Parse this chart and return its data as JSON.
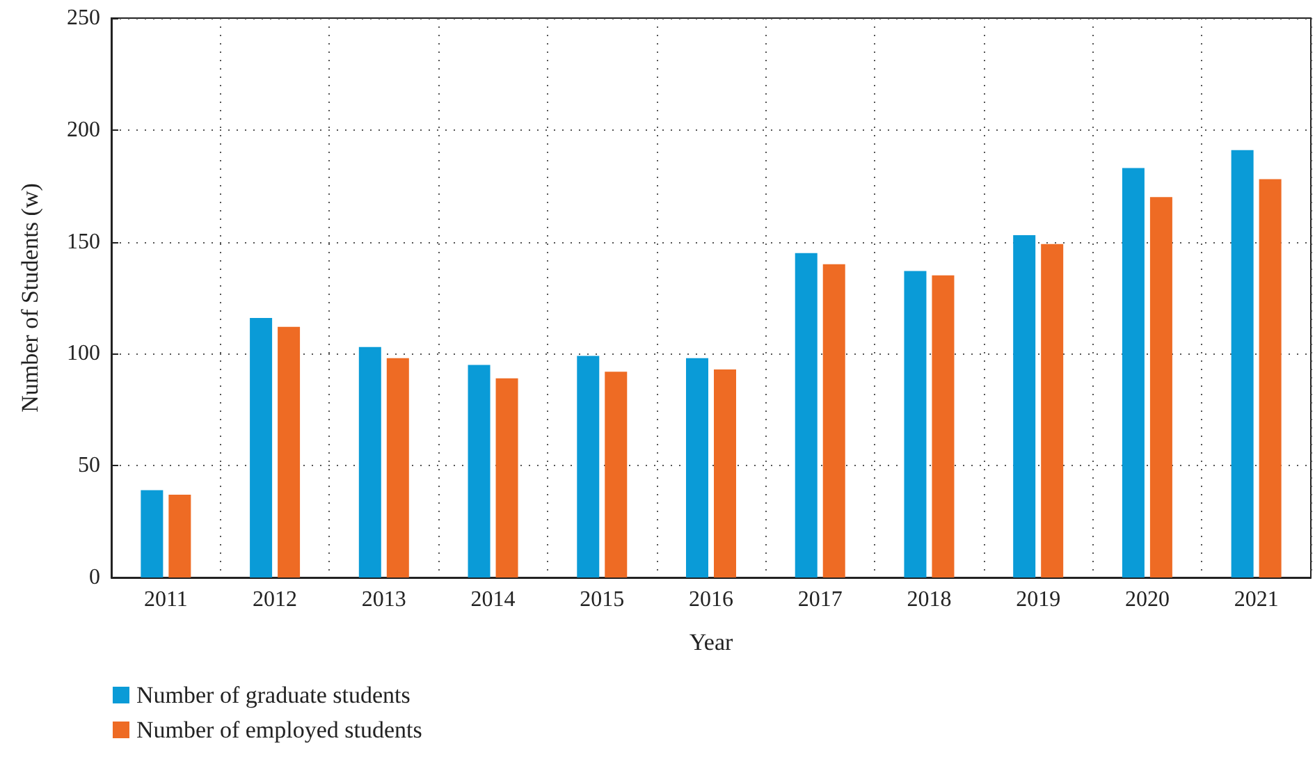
{
  "chart_data": {
    "type": "bar",
    "xlabel": "Year",
    "ylabel": "Number of Students (w)",
    "categories": [
      "2011",
      "2012",
      "2013",
      "2014",
      "2015",
      "2016",
      "2017",
      "2018",
      "2019",
      "2020",
      "2021"
    ],
    "series": [
      {
        "name": "Number of graduate students",
        "color": "#0a9bd7",
        "values": [
          39,
          116,
          103,
          95,
          99,
          98,
          145,
          137,
          153,
          183,
          191
        ]
      },
      {
        "name": "Number of employed students",
        "color": "#ee6b24",
        "values": [
          37,
          112,
          98,
          89,
          92,
          93,
          140,
          135,
          149,
          170,
          178
        ]
      }
    ],
    "ylim": [
      0,
      250
    ],
    "yticks": [
      0,
      50,
      100,
      150,
      200,
      250
    ],
    "grid": true,
    "legend": "bottom left"
  }
}
